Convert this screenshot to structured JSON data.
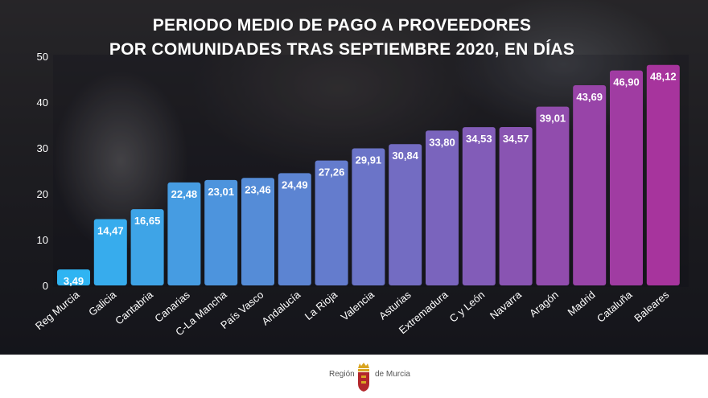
{
  "title_line1": "PERIODO MEDIO DE PAGO A PROVEEDORES",
  "title_line2": "POR COMUNIDADES TRAS SEPTIEMBRE 2020, EN DÍAS",
  "footer": {
    "left_text": "Región",
    "right_text": "de Murcia"
  },
  "colors": {
    "bar_start": "#2fb4f2",
    "bar_end": "#a7349d",
    "label_color": "#ffffff",
    "crest_red": "#b3262b",
    "crest_gold": "#d9a521"
  },
  "chart_data": {
    "type": "bar",
    "title": "PERIODO MEDIO DE PAGO A PROVEEDORES POR COMUNIDADES TRAS SEPTIEMBRE 2020, EN DÍAS",
    "xlabel": "",
    "ylabel": "",
    "ylim": [
      0,
      50
    ],
    "yticks": [
      "0",
      "10",
      "20",
      "30",
      "40",
      "50"
    ],
    "categories": [
      "Reg Murcia",
      "Galicia",
      "Cantabria",
      "Canarias",
      "C-La Mancha",
      "País Vasco",
      "Andalucía",
      "La Rioja",
      "Valencia",
      "Asturias",
      "Extremadura",
      "C y León",
      "Navarra",
      "Aragón",
      "Madrid",
      "Cataluña",
      "Baleares"
    ],
    "values": [
      3.49,
      14.47,
      16.65,
      22.48,
      23.01,
      23.46,
      24.49,
      27.26,
      29.91,
      30.84,
      33.8,
      34.53,
      34.57,
      39.01,
      43.69,
      46.9,
      48.12
    ],
    "value_labels": [
      "3,49",
      "14,47",
      "16,65",
      "22,48",
      "23,01",
      "23,46",
      "24,49",
      "27,26",
      "29,91",
      "30,84",
      "33,80",
      "34,53",
      "34,57",
      "39,01",
      "43,69",
      "46,90",
      "48,12"
    ]
  }
}
